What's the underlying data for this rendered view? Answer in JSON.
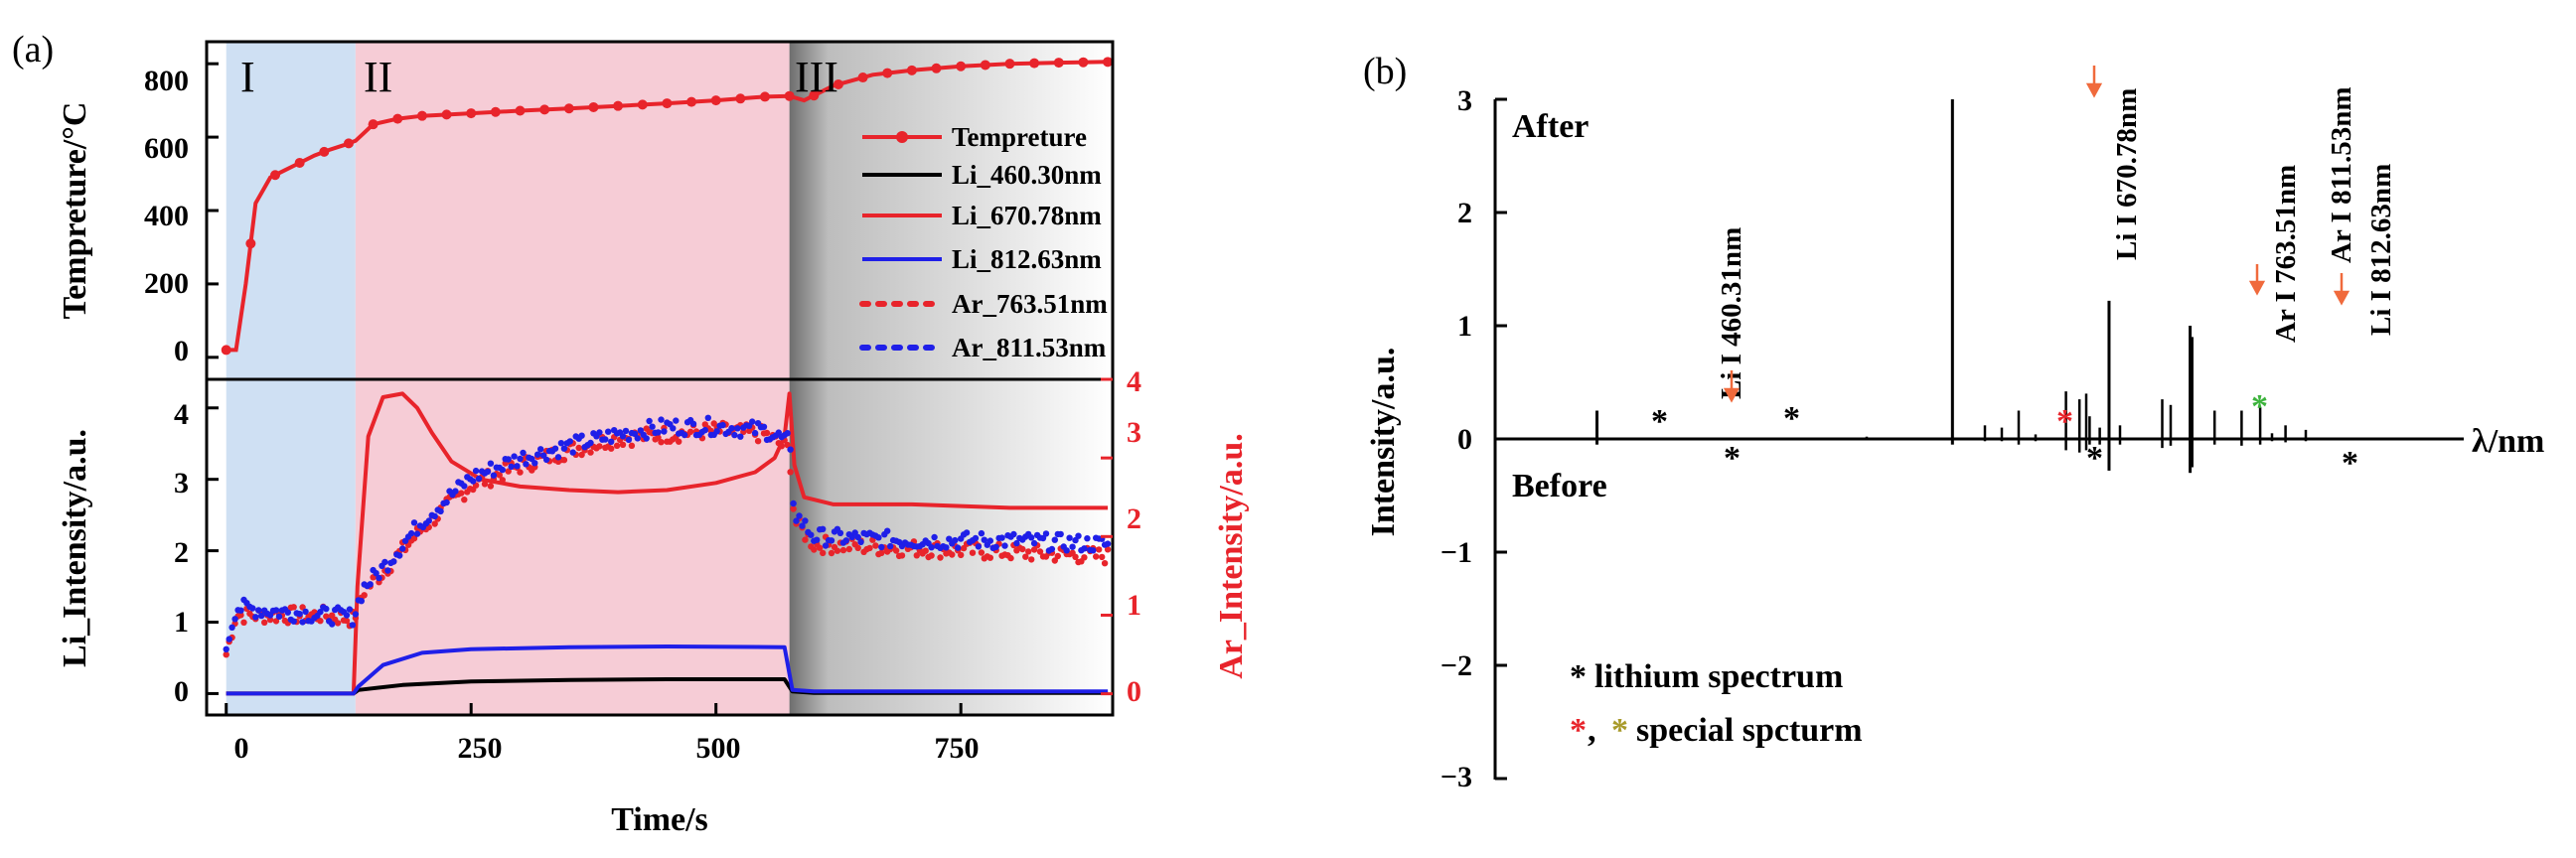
{
  "chart_data": [
    {
      "panel_label": "(a)",
      "type": "line",
      "title": "",
      "regions": [
        {
          "name": "I",
          "x_start": 0,
          "x_end": 132,
          "color": "#cfe0f3"
        },
        {
          "name": "II",
          "x_start": 132,
          "x_end": 575,
          "color": "#f6ccd6"
        },
        {
          "name": "III",
          "x_start": 575,
          "x_end": 905,
          "color": "gradient-gray"
        }
      ],
      "xlabel": "Time/s",
      "xlim": [
        -20,
        905
      ],
      "xticks": [
        "0",
        "250",
        "500",
        "750"
      ],
      "top": {
        "ylabel": "Tempreture/°C",
        "ylim": [
          -60,
          860
        ],
        "yticks": [
          "0",
          "200",
          "400",
          "600",
          "800"
        ],
        "series": [
          {
            "name": "Tempreture",
            "color": "#e8242b",
            "x": [
              0,
              10,
              20,
              30,
              45,
              60,
              75,
              90,
              105,
              120,
              132,
              140,
              150,
              175,
              200,
              250,
              300,
              350,
              400,
              450,
              500,
              550,
              575,
              590,
              620,
              660,
              700,
              750,
              800,
              850,
              900
            ],
            "y": [
              20,
              20,
              200,
              420,
              490,
              510,
              530,
              550,
              565,
              578,
              590,
              610,
              635,
              650,
              658,
              665,
              672,
              678,
              685,
              692,
              700,
              710,
              712,
              700,
              740,
              770,
              782,
              793,
              800,
              803,
              805
            ]
          }
        ]
      },
      "bottom": {
        "ylabel_left": "Li_Intensity/a.u.",
        "ylabel_right": "Ar_Intensity/a.u.",
        "ylim_left": [
          -0.3,
          4.4
        ],
        "ylim_right": [
          -0.27,
          4.0
        ],
        "yticks_left": [
          "0",
          "1",
          "2",
          "3",
          "4"
        ],
        "yticks_right": [
          "0",
          "1",
          "2",
          "3",
          "4"
        ],
        "series": [
          {
            "name": "Li_460.30nm",
            "color": "#000000",
            "style": "solid",
            "axis": "left",
            "x": [
              0,
              130,
              135,
              180,
              250,
              350,
              450,
              570,
              578,
              600,
              900
            ],
            "y": [
              0.0,
              0.0,
              0.05,
              0.12,
              0.17,
              0.19,
              0.2,
              0.2,
              0.03,
              0.01,
              0.01
            ]
          },
          {
            "name": "Li_670.78nm",
            "color": "#e8242b",
            "style": "solid",
            "axis": "left",
            "x": [
              0,
              130,
              134,
              145,
              160,
              180,
              195,
              210,
              230,
              260,
              300,
              350,
              400,
              450,
              500,
              540,
              560,
              570,
              575,
              580,
              590,
              620,
              700,
              800,
              900
            ],
            "y": [
              0.0,
              0.0,
              1.5,
              3.6,
              4.15,
              4.2,
              4.0,
              3.65,
              3.25,
              3.0,
              2.9,
              2.85,
              2.82,
              2.85,
              2.95,
              3.1,
              3.3,
              3.6,
              4.2,
              3.2,
              2.75,
              2.65,
              2.65,
              2.6,
              2.6
            ]
          },
          {
            "name": "Li_812.63nm",
            "color": "#1f1fe8",
            "style": "solid",
            "axis": "left",
            "x": [
              0,
              130,
              135,
              160,
              200,
              250,
              350,
              450,
              570,
              578,
              600,
              900
            ],
            "y": [
              0.0,
              0.0,
              0.1,
              0.4,
              0.57,
              0.62,
              0.65,
              0.66,
              0.65,
              0.05,
              0.03,
              0.03
            ]
          },
          {
            "name": "Ar_763.51nm",
            "color": "#e8242b",
            "style": "dotted",
            "axis": "right",
            "x": [
              0,
              10,
              50,
              100,
              130,
              140,
              160,
              200,
              250,
              300,
              350,
              400,
              450,
              500,
              550,
              575,
              580,
              600,
              700,
              800,
              900
            ],
            "y": [
              0.5,
              1.0,
              1.0,
              1.0,
              0.95,
              1.3,
              1.55,
              2.1,
              2.65,
              2.9,
              3.1,
              3.25,
              3.3,
              3.35,
              3.3,
              3.1,
              2.2,
              1.9,
              1.85,
              1.8,
              1.75
            ]
          },
          {
            "name": "Ar_811.53nm",
            "color": "#1f1fe8",
            "style": "dotted",
            "axis": "right",
            "x": [
              0,
              10,
              50,
              100,
              130,
              140,
              160,
              200,
              250,
              300,
              350,
              400,
              450,
              500,
              550,
              575,
              580,
              600,
              700,
              800,
              900
            ],
            "y": [
              0.6,
              1.1,
              1.05,
              1.0,
              0.98,
              1.35,
              1.6,
              2.2,
              2.75,
              3.0,
              3.15,
              3.3,
              3.4,
              3.4,
              3.35,
              3.2,
              2.3,
              2.0,
              1.95,
              1.95,
              1.9
            ]
          }
        ]
      }
    },
    {
      "panel_label": "(b)",
      "type": "line",
      "title": "",
      "xlabel": "λ/nm",
      "ylabel": "Intensity/a.u.",
      "ylim": [
        -3,
        3
      ],
      "yticks": [
        "3",
        "2",
        "1",
        "0",
        "−1",
        "−2",
        "−3"
      ],
      "xlim": [
        400,
        950
      ],
      "upper_label": "After",
      "lower_label": "Before",
      "peaks": [
        {
          "label": "Li I 460.31nm",
          "x": 460.31,
          "after": 0.25,
          "before": -0.05
        },
        {
          "label": "Li I 670.78nm",
          "x": 670.78,
          "after": 3.0,
          "before": -0.05
        },
        {
          "label": "Ar I 763.51nm",
          "x": 763.51,
          "after": 1.22,
          "before": -0.28
        },
        {
          "label": "Ar I 811.53nm",
          "x": 811.53,
          "after": 1.0,
          "before": -0.3
        },
        {
          "label": "Li I 812.63nm",
          "x": 812.63,
          "after": 0.9,
          "before": -0.25
        }
      ],
      "minor_lines": {
        "x": [
          620,
          690,
          700,
          710,
          720,
          738,
          746,
          750,
          752,
          758,
          770,
          795,
          800,
          826,
          842,
          853,
          860,
          868,
          880
        ],
        "after": [
          0.02,
          0.12,
          0.1,
          0.25,
          0.04,
          0.42,
          0.35,
          0.4,
          0.2,
          0.1,
          0.12,
          0.35,
          0.3,
          0.25,
          0.25,
          0.28,
          0.05,
          0.12,
          0.08
        ],
        "before": [
          0.0,
          -0.02,
          -0.02,
          -0.05,
          -0.02,
          -0.1,
          -0.12,
          -0.1,
          -0.05,
          -0.05,
          -0.05,
          -0.08,
          -0.06,
          -0.05,
          -0.06,
          -0.05,
          -0.02,
          -0.03,
          -0.02
        ]
      },
      "annotations": {
        "asterisk": "*",
        "legend_lithium": "lithium spectrum",
        "legend_special": "special spcturm",
        "comma": ","
      }
    }
  ]
}
